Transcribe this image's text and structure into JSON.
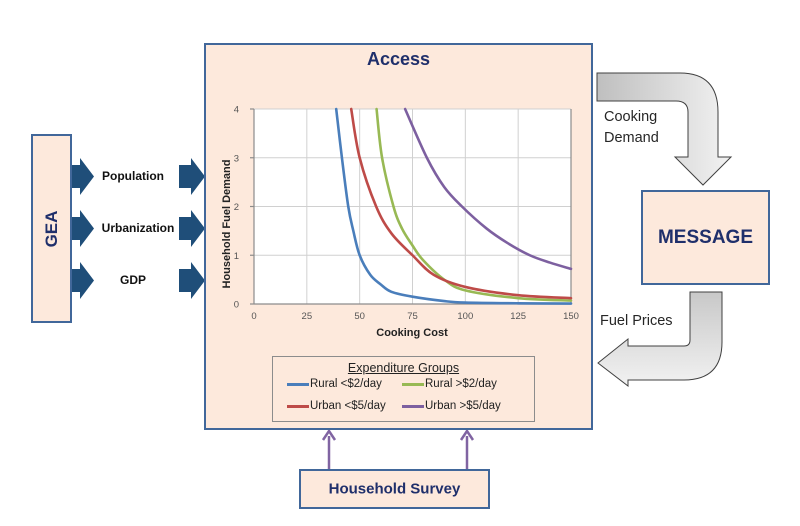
{
  "gea": {
    "label": "GEA"
  },
  "drivers": [
    {
      "label": "Population"
    },
    {
      "label": "Urbanization"
    },
    {
      "label": "GDP"
    }
  ],
  "access": {
    "title": "Access"
  },
  "message": {
    "label": "MESSAGE"
  },
  "survey": {
    "label": "Household Survey"
  },
  "flows": {
    "cooking_demand": [
      "Cooking",
      "Demand"
    ],
    "fuel_prices": "Fuel Prices"
  },
  "colors": {
    "box_fill": "#fde9dc",
    "box_border": "#41679a",
    "title_text": "#1f2f6b",
    "driver_arrow": "#1f4e79",
    "survey_arrow": "#8064a2",
    "flow_arrow_light": "#f2f2f2",
    "flow_arrow_dark": "#bfbfbf"
  },
  "legend": {
    "title": "Expenditure Groups",
    "items": [
      {
        "label": "Rural <$2/day",
        "color": "#4a7ebb"
      },
      {
        "label": "Rural >$2/day",
        "color": "#98b954"
      },
      {
        "label": "Urban <$5/day",
        "color": "#be4b48"
      },
      {
        "label": "Urban >$5/day",
        "color": "#7d60a0"
      }
    ]
  },
  "chart_data": {
    "type": "line",
    "title": "",
    "xlabel": "Cooking Cost",
    "ylabel": "Household Fuel Demand",
    "xlim": [
      0,
      150
    ],
    "ylim": [
      0,
      4
    ],
    "xticks": [
      0,
      25,
      50,
      75,
      100,
      125,
      150
    ],
    "yticks": [
      0,
      1,
      2,
      3,
      4
    ],
    "grid": true,
    "legend_position": "bottom",
    "series": [
      {
        "name": "Rural <$2/day",
        "color": "#4a7ebb",
        "x": [
          38.9,
          41.6,
          44.6,
          47,
          50,
          55,
          60,
          65,
          75,
          90,
          100,
          125,
          150
        ],
        "y": [
          4.0,
          3.0,
          2.0,
          1.5,
          1.0,
          0.6,
          0.4,
          0.25,
          0.15,
          0.06,
          0.03,
          0.015,
          0.01
        ]
      },
      {
        "name": "Rural >$2/day",
        "color": "#98b954",
        "x": [
          58,
          60.6,
          66,
          70,
          75,
          80,
          90,
          100,
          125,
          150
        ],
        "y": [
          4.0,
          3.0,
          2.0,
          1.55,
          1.2,
          0.9,
          0.5,
          0.28,
          0.12,
          0.07
        ]
      },
      {
        "name": "Urban <$5/day",
        "color": "#be4b48",
        "x": [
          46,
          50,
          57.8,
          65,
          75,
          85,
          100,
          125,
          150
        ],
        "y": [
          4.0,
          3.0,
          2.0,
          1.45,
          1.0,
          0.6,
          0.35,
          0.18,
          0.12
        ]
      },
      {
        "name": "Urban >$5/day",
        "color": "#7d60a0",
        "x": [
          71.5,
          81.8,
          90,
          98.4,
          110,
          120,
          130.5,
          140,
          150
        ],
        "y": [
          4.0,
          3.0,
          2.4,
          2.0,
          1.55,
          1.25,
          1.0,
          0.85,
          0.72
        ]
      }
    ]
  }
}
